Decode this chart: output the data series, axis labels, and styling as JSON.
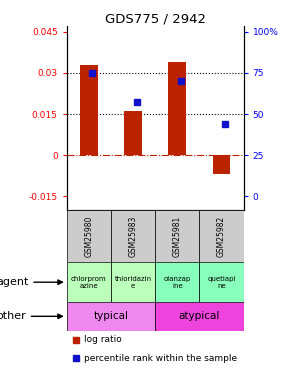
{
  "title": "GDS775 / 2942",
  "samples": [
    "GSM25980",
    "GSM25983",
    "GSM25981",
    "GSM25982"
  ],
  "log_ratios": [
    0.033,
    0.016,
    0.034,
    -0.007
  ],
  "percentile_ranks": [
    0.75,
    0.57,
    0.7,
    0.44
  ],
  "ylim": [
    -0.02,
    0.047
  ],
  "yticks_left": [
    -0.015,
    0,
    0.015,
    0.03,
    0.045
  ],
  "ytick_labels_left": [
    "-0.015",
    "0",
    "0.015",
    "0.03",
    "0.045"
  ],
  "ytick_labels_right": [
    "0",
    "25",
    "50",
    "75",
    "100%"
  ],
  "hlines": [
    0.015,
    0.03
  ],
  "bar_color": "#bb2200",
  "dot_color": "#1111cc",
  "agent_labels": [
    "chlorprom\nazine",
    "thioridazin\ne",
    "olanzap\nine",
    "quetiapi\nne"
  ],
  "agent_colors_left": "#bbffbb",
  "agent_colors_right": "#88ffbb",
  "other_label_left": "typical",
  "other_label_right": "atypical",
  "other_color_left": "#ee88ee",
  "other_color_right": "#ee44dd",
  "left_label_agent": "agent",
  "left_label_other": "other",
  "legend_bar_label": "log ratio",
  "legend_dot_label": "percentile rank within the sample",
  "sample_bg": "#cccccc",
  "background_color": "#ffffff"
}
